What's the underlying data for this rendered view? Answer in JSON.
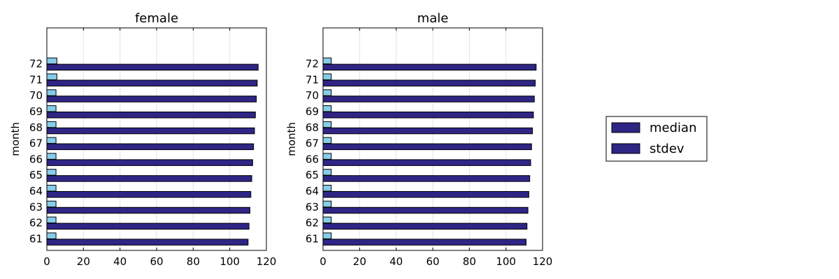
{
  "chart_data": [
    {
      "type": "bar",
      "orientation": "horizontal",
      "title": "female",
      "xlabel": "",
      "ylabel": "month",
      "xlim": [
        0,
        120
      ],
      "xticks": [
        0,
        20,
        40,
        60,
        80,
        100,
        120
      ],
      "grid": true,
      "categories": [
        "61",
        "62",
        "63",
        "64",
        "65",
        "66",
        "67",
        "68",
        "69",
        "70",
        "71",
        "72"
      ],
      "series": [
        {
          "name": "median",
          "color": "#2e2585",
          "values": [
            110,
            110.5,
            111,
            111.5,
            112,
            112.5,
            113,
            113.5,
            114,
            114.5,
            115,
            115.5
          ]
        },
        {
          "name": "stdev",
          "color": "#2e2585",
          "display_color": "#88cce8",
          "values": [
            5,
            5,
            5,
            5,
            5,
            5,
            5,
            5,
            5,
            5,
            5.5,
            5.5
          ]
        }
      ]
    },
    {
      "type": "bar",
      "orientation": "horizontal",
      "title": "male",
      "xlabel": "",
      "ylabel": "month",
      "xlim": [
        0,
        120
      ],
      "xticks": [
        0,
        20,
        40,
        60,
        80,
        100,
        120
      ],
      "grid": true,
      "categories": [
        "61",
        "62",
        "63",
        "64",
        "65",
        "66",
        "67",
        "68",
        "69",
        "70",
        "71",
        "72"
      ],
      "series": [
        {
          "name": "median",
          "color": "#2e2585",
          "values": [
            111,
            111.5,
            112,
            112.5,
            113,
            113.5,
            114,
            114.5,
            115,
            115.5,
            116,
            116.5
          ]
        },
        {
          "name": "stdev",
          "color": "#2e2585",
          "display_color": "#88cce8",
          "values": [
            4.5,
            4.5,
            4.5,
            4.5,
            4.5,
            4.5,
            4.5,
            4.5,
            4.5,
            4.5,
            4.5,
            4.5
          ]
        }
      ]
    }
  ],
  "legend": {
    "placement": "right",
    "entries": [
      {
        "label": "median",
        "color": "#2e2585"
      },
      {
        "label": "stdev",
        "color": "#2e2585"
      }
    ]
  }
}
